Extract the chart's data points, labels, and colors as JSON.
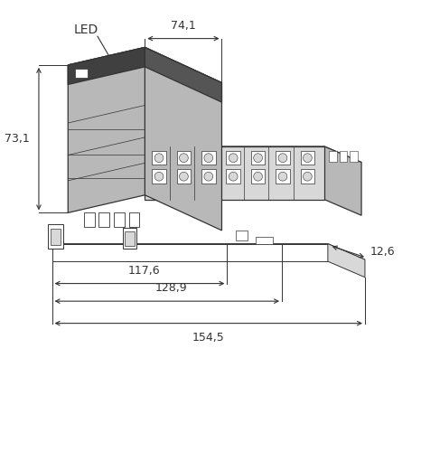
{
  "bg_color": "#ffffff",
  "line_color": "#333333",
  "dim_color": "#333333",
  "gray_main": "#b8b8b8",
  "gray_light": "#d8d8d8",
  "gray_dark": "#404040",
  "gray_side": "#a0a0a0",
  "gray_top": "#c8c8c8",
  "fig_width": 4.66,
  "fig_height": 5.0,
  "dpi": 100,
  "dim_741": "74,1",
  "dim_731": "73,1",
  "dim_1176": "117,6",
  "dim_1289": "128,9",
  "dim_1545": "154,5",
  "dim_126": "12,6",
  "led_label": "LED"
}
